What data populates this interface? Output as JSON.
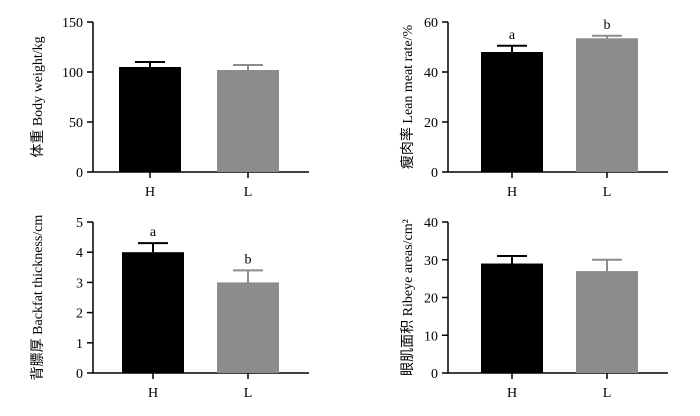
{
  "chart_data": [
    {
      "type": "bar",
      "ylabel": "体重 Body weight/kg",
      "categories": [
        "H",
        "L"
      ],
      "values": [
        105,
        102
      ],
      "errors": [
        5,
        5
      ],
      "letters": [
        "",
        ""
      ],
      "ylim": [
        0,
        150
      ],
      "yticks": [
        0,
        50,
        100,
        150
      ],
      "colors": [
        "#000000",
        "#8c8c8c"
      ],
      "grid": false
    },
    {
      "type": "bar",
      "ylabel": "瘦肉率 Lean meat rate/%",
      "categories": [
        "H",
        "L"
      ],
      "values": [
        48,
        53.5
      ],
      "errors": [
        2.5,
        1
      ],
      "letters": [
        "a",
        "b"
      ],
      "ylim": [
        0,
        60
      ],
      "yticks": [
        0,
        20,
        40,
        60
      ],
      "colors": [
        "#000000",
        "#8c8c8c"
      ],
      "grid": false
    },
    {
      "type": "bar",
      "ylabel": "背膘厚 Backfat thickness/cm",
      "categories": [
        "H",
        "L"
      ],
      "values": [
        4,
        3
      ],
      "errors": [
        0.3,
        0.4
      ],
      "letters": [
        "a",
        "b"
      ],
      "ylim": [
        0,
        5
      ],
      "yticks": [
        0,
        1,
        2,
        3,
        4,
        5
      ],
      "colors": [
        "#000000",
        "#8c8c8c"
      ],
      "grid": false
    },
    {
      "type": "bar",
      "ylabel": "眼肌面积 Ribeye areas/cm²",
      "categories": [
        "H",
        "L"
      ],
      "values": [
        29,
        27
      ],
      "errors": [
        2,
        3
      ],
      "letters": [
        "",
        ""
      ],
      "ylim": [
        0,
        40
      ],
      "yticks": [
        0,
        10,
        20,
        30,
        40
      ],
      "colors": [
        "#000000",
        "#8c8c8c"
      ],
      "grid": false
    }
  ]
}
